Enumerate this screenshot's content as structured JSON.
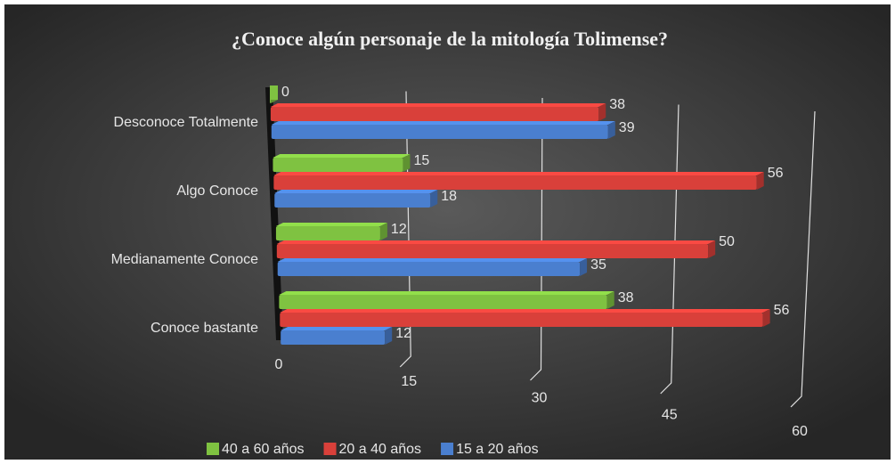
{
  "chart_data": {
    "type": "bar",
    "orientation": "horizontal",
    "title": "¿Conoce algún personaje de la mitología Tolimense?",
    "categories": [
      "Desconoce Totalmente",
      "Algo Conoce",
      "Medianamente Conoce",
      "Conoce bastante"
    ],
    "series": [
      {
        "name": "40 a 60 años",
        "color": "#7fc241",
        "values": [
          0,
          15,
          12,
          38
        ]
      },
      {
        "name": "20 a 40 años",
        "color": "#d9403a",
        "values": [
          38,
          56,
          50,
          56
        ]
      },
      {
        "name": "15 a 20 años",
        "color": "#4a7fcf",
        "values": [
          39,
          18,
          35,
          12
        ]
      }
    ],
    "xlim": [
      0,
      60
    ],
    "xticks": [
      0,
      15,
      30,
      45,
      60
    ],
    "grid": true,
    "legend": "bottom"
  }
}
